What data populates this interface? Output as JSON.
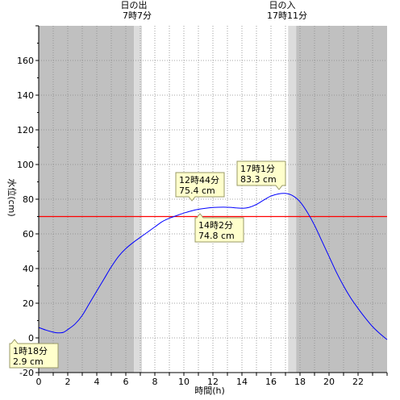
{
  "chart_data": {
    "type": "line",
    "xlabel": "時間(h)",
    "ylabel": "水位(cm)",
    "xlim": [
      0,
      24
    ],
    "ylim": [
      -20,
      180
    ],
    "x_ticks": [
      "0",
      "2",
      "4",
      "6",
      "8",
      "10",
      "12",
      "14",
      "16",
      "18",
      "20",
      "22"
    ],
    "y_ticks": [
      "-20",
      "0",
      "20",
      "40",
      "60",
      "80",
      "100",
      "120",
      "140",
      "160"
    ],
    "series": [
      {
        "x": [
          0,
          0.5,
          1.0,
          1.3,
          1.7,
          2.0,
          2.5,
          3.0,
          3.5,
          4.0,
          4.5,
          5.0,
          5.5,
          6.0,
          6.5,
          7.0,
          7.5,
          8.0,
          8.5,
          9.0,
          9.5,
          10.0,
          10.5,
          11.0,
          11.5,
          12.0,
          12.73,
          13.2,
          13.6,
          14.03,
          14.5,
          15.0,
          15.5,
          16.0,
          16.5,
          17.02,
          17.5,
          18.0,
          18.5,
          19.0,
          19.5,
          20.0,
          20.5,
          21.0,
          21.5,
          22.0,
          22.5,
          23.0,
          23.5,
          24.0
        ],
        "values": [
          6.0,
          4.5,
          3.3,
          2.9,
          3.2,
          4.8,
          8.0,
          13.0,
          20.0,
          27.0,
          34.0,
          41.0,
          47.0,
          51.5,
          55.0,
          58.0,
          61.0,
          64.0,
          67.0,
          69.0,
          70.5,
          72.0,
          73.2,
          74.2,
          74.8,
          75.2,
          75.4,
          75.3,
          75.0,
          74.8,
          75.3,
          77.0,
          79.5,
          81.8,
          83.0,
          83.3,
          82.0,
          78.5,
          72.5,
          65.0,
          56.0,
          47.0,
          38.0,
          30.0,
          23.0,
          17.0,
          11.5,
          6.5,
          2.5,
          -1.0
        ]
      }
    ],
    "reference_line": 70,
    "sunrise": 7.1167,
    "sunset": 17.1833,
    "annotations": [
      {
        "id": "low1",
        "time": "1時18分",
        "value": "2.9 cm",
        "x": 1.3,
        "y": 2.9
      },
      {
        "id": "high1",
        "time": "12時44分",
        "value": "75.4 cm",
        "x": 12.73,
        "y": 75.4
      },
      {
        "id": "low2",
        "time": "14時2分",
        "value": "74.8 cm",
        "x": 14.03,
        "y": 74.8
      },
      {
        "id": "high2",
        "time": "17時1分",
        "value": "83.3 cm",
        "x": 17.02,
        "y": 83.3
      }
    ],
    "grid": true
  },
  "sun": {
    "sunrise_label": "日の出",
    "sunrise_time": "7時7分",
    "sunset_label": "日の入",
    "sunset_time": "17時11分"
  },
  "colors": {
    "night": "#c0c0c0",
    "twilight": "#dcdcdc",
    "day": "#ffffff",
    "curve": "#0000ff",
    "reference": "#ff0000",
    "callout_bg": "#ffffcc",
    "callout_border": "#999966"
  }
}
